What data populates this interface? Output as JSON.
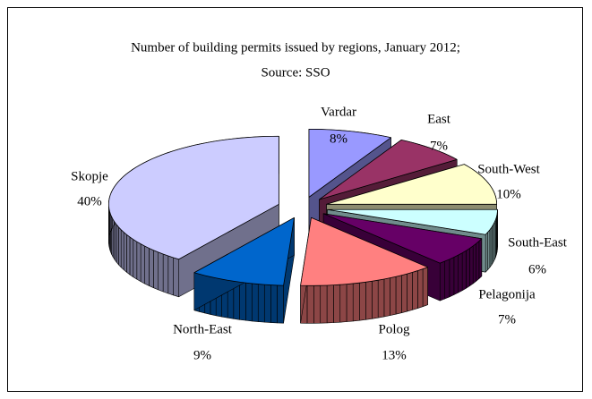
{
  "chart_data": {
    "type": "pie",
    "title": "Number of building permits issued by regions, January 2012;",
    "subtitle": "Source: SSO",
    "categories": [
      "Vardar",
      "East",
      "South-West",
      "South-East",
      "Pelagonija",
      "Polog",
      "North-East",
      "Skopje"
    ],
    "values": [
      8,
      7,
      10,
      6,
      7,
      13,
      9,
      40
    ],
    "value_labels": [
      "8%",
      "7%",
      "10%",
      "6%",
      "7%",
      "13%",
      "9%",
      "40%"
    ],
    "colors": [
      "#9999ff",
      "#993366",
      "#ffffcc",
      "#ccffff",
      "#660066",
      "#ff8080",
      "#0066cc",
      "#ccccff"
    ]
  }
}
